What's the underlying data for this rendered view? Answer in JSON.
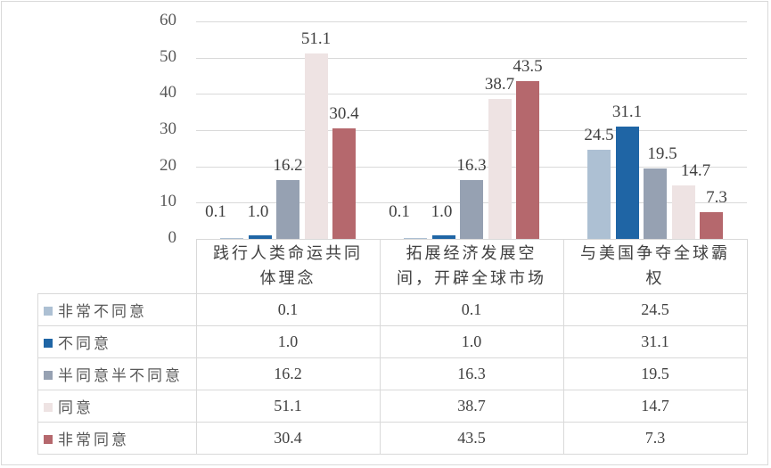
{
  "chart_data": {
    "type": "bar",
    "title": "",
    "xlabel": "",
    "ylabel": "",
    "ylim": [
      0,
      60
    ],
    "yticks": [
      0,
      10,
      20,
      30,
      40,
      50,
      60
    ],
    "grid": true,
    "legend_position": "data-table",
    "categories": [
      "践行人类命运共同体理念",
      "拓展经济发展空间，开辟全球市场",
      "与美国争夺全球霸权"
    ],
    "category_lines": [
      [
        "践行人类命运共同",
        "体理念"
      ],
      [
        "拓展经济发展空",
        "间，开辟全球市场"
      ],
      [
        "与美国争夺全球霸",
        "权"
      ]
    ],
    "series": [
      {
        "name": "非常不同意",
        "color": "#adc0d3",
        "values": [
          0.1,
          0.1,
          24.5
        ],
        "labels": [
          "0.1",
          "0.1",
          "24.5"
        ]
      },
      {
        "name": "不同意",
        "color": "#1f65a5",
        "values": [
          1.0,
          1.0,
          31.1
        ],
        "labels": [
          "1.0",
          "1.0",
          "31.1"
        ]
      },
      {
        "name": "半同意半不同意",
        "color": "#96a1b2",
        "values": [
          16.2,
          16.3,
          19.5
        ],
        "labels": [
          "16.2",
          "16.3",
          "19.5"
        ]
      },
      {
        "name": "同意",
        "color": "#eee3e3",
        "values": [
          51.1,
          38.7,
          14.7
        ],
        "labels": [
          "51.1",
          "38.7",
          "14.7"
        ]
      },
      {
        "name": "非常同意",
        "color": "#b5686d",
        "values": [
          30.4,
          43.5,
          7.3
        ],
        "labels": [
          "30.4",
          "43.5",
          "7.3"
        ]
      }
    ]
  }
}
